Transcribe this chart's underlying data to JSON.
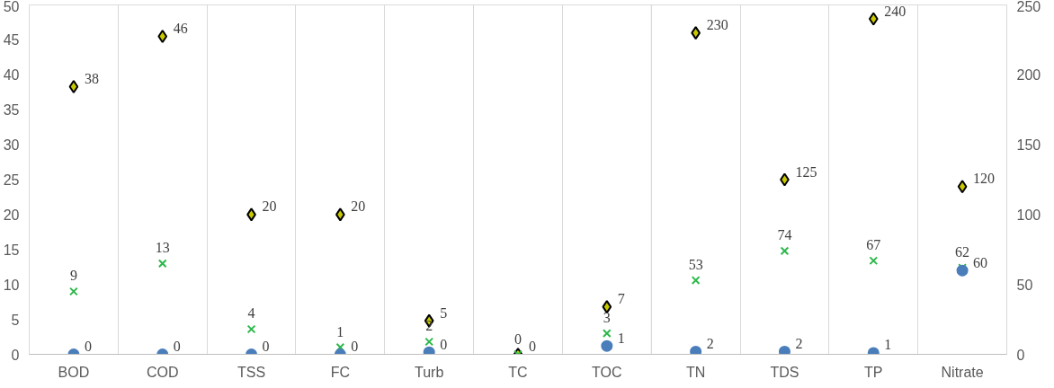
{
  "chart_data": {
    "type": "scatter",
    "categories": [
      "BOD",
      "COD",
      "TSS",
      "FC",
      "Turb",
      "TC",
      "TOC",
      "TN",
      "TDS",
      "TP",
      "Nitrate"
    ],
    "ylim": [
      0,
      50
    ],
    "yticks": [
      0,
      5,
      10,
      15,
      20,
      25,
      30,
      35,
      40,
      45,
      50
    ],
    "y2lim": [
      0,
      250
    ],
    "y2ticks": [
      0,
      50,
      100,
      150,
      200,
      250
    ],
    "grid": "x",
    "series": [
      {
        "color": "#000000",
        "marker": "diamond",
        "values": [
          38.3,
          45.5,
          20,
          20,
          4.8,
          0,
          6.8,
          null,
          null,
          null,
          null
        ],
        "value_labels": [
          "38",
          "46",
          "20",
          "20",
          "5",
          "0",
          "7",
          null,
          null,
          null,
          null
        ]
      },
      {
        "color": "#2db84b",
        "marker": "cross",
        "values": [
          9,
          13,
          3.6,
          1,
          1.8,
          0,
          3,
          null,
          null,
          null,
          null
        ],
        "value_labels": [
          "9",
          "13",
          "4",
          "1",
          "2",
          "0",
          "3",
          null,
          null,
          null,
          null
        ]
      },
      {
        "color": "#4a7ebb",
        "marker": "circle",
        "values": [
          0,
          0,
          0,
          0,
          0.3,
          null,
          1.2,
          null,
          null,
          null,
          null
        ],
        "value_labels": [
          "0",
          "0",
          "0",
          "0",
          "0",
          null,
          "1",
          null,
          null,
          null,
          null
        ]
      },
      {
        "color": "#000000",
        "marker": "diamond",
        "axis": "y2",
        "values": [
          null,
          null,
          null,
          null,
          null,
          null,
          null,
          230,
          125,
          240,
          120
        ],
        "value_labels": [
          null,
          null,
          null,
          null,
          null,
          null,
          null,
          "230",
          "125",
          "240",
          "120"
        ]
      },
      {
        "color": "#2db84b",
        "marker": "cross",
        "axis": "y2",
        "values": [
          null,
          null,
          null,
          null,
          null,
          null,
          null,
          53,
          74,
          67,
          62
        ],
        "value_labels": [
          null,
          null,
          null,
          null,
          null,
          null,
          null,
          "53",
          "74",
          "67",
          "62"
        ]
      },
      {
        "color": "#4a7ebb",
        "marker": "circle",
        "axis": "y2",
        "values": [
          null,
          null,
          null,
          null,
          null,
          null,
          null,
          2,
          2,
          1,
          60
        ],
        "value_labels": [
          null,
          null,
          null,
          null,
          null,
          null,
          null,
          "2",
          "2",
          "1",
          "60"
        ]
      }
    ]
  }
}
